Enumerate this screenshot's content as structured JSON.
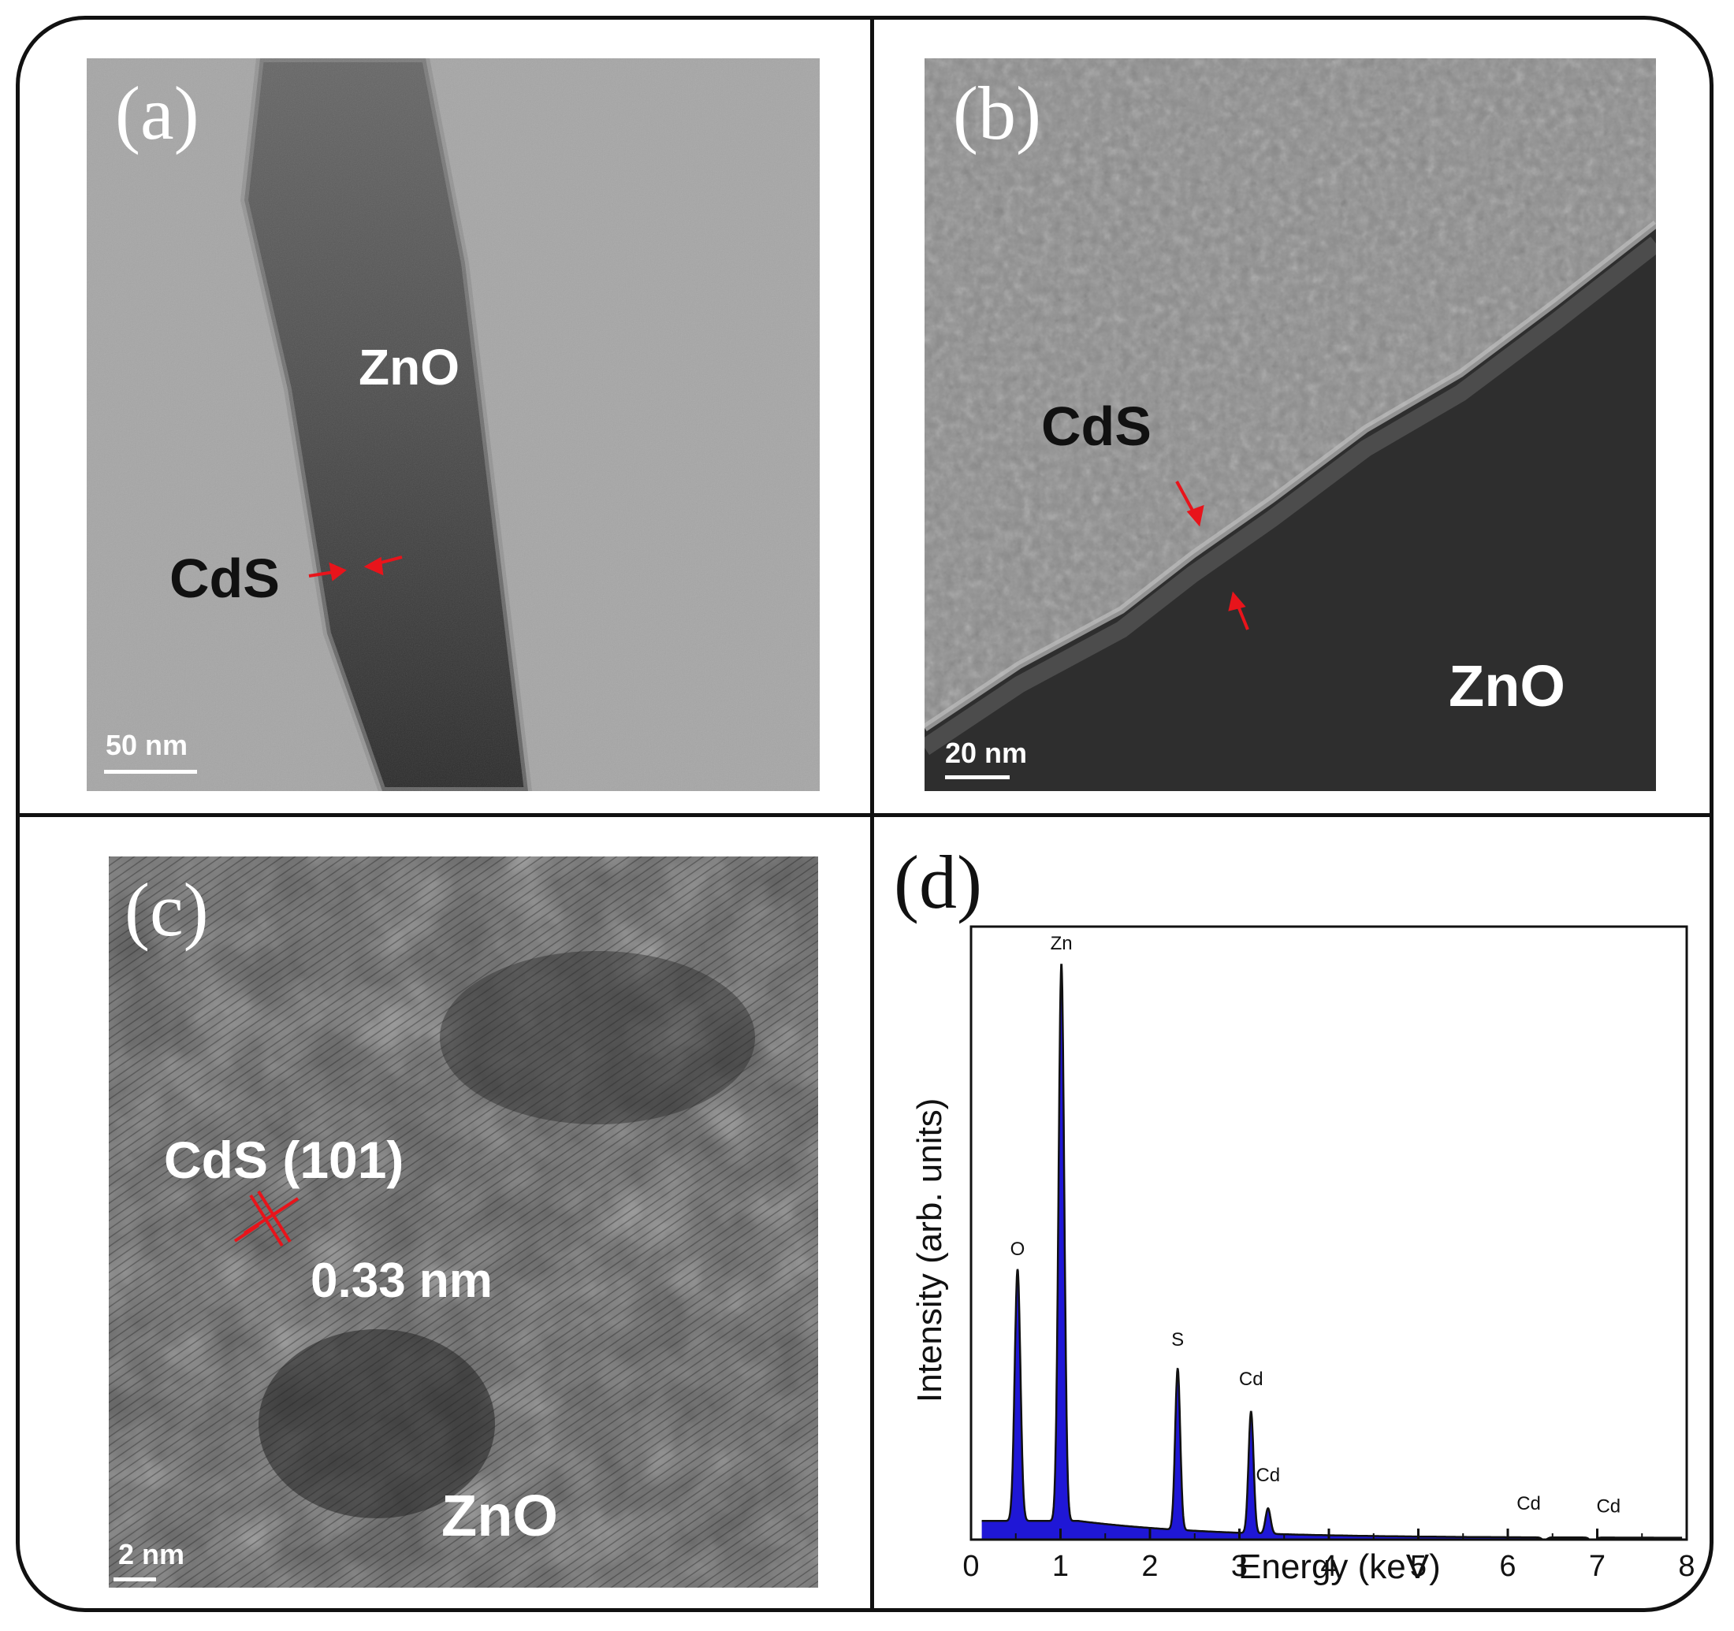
{
  "figure": {
    "panel_a": {
      "letter": "(a)",
      "labels": {
        "zno": "ZnO",
        "cds": "CdS"
      },
      "scale_bar": "50 nm"
    },
    "panel_b": {
      "letter": "(b)",
      "labels": {
        "cds": "CdS",
        "zno": "ZnO"
      },
      "scale_bar": "20 nm"
    },
    "panel_c": {
      "letter": "(c)",
      "labels": {
        "plane": "CdS (101)",
        "spacing": "0.33 nm",
        "zno": "ZnO"
      },
      "scale_bar": "2 nm"
    },
    "panel_d": {
      "letter": "(d)"
    },
    "colors": {
      "arrow": "#e8141b",
      "fill": "#1f17d6",
      "line": "#111111"
    }
  },
  "chart_data": {
    "type": "line",
    "title": "",
    "xlabel": "Energy (keV)",
    "ylabel": "Intensity (arb. units)",
    "xlim": [
      0,
      8
    ],
    "ylim": [
      0,
      100
    ],
    "x_ticks": [
      0,
      1,
      2,
      3,
      4,
      5,
      6,
      7,
      8
    ],
    "y_ticks_shown": false,
    "baseline": 3,
    "peaks": [
      {
        "label": "O",
        "energy": 0.52,
        "intensity": 46
      },
      {
        "label": "Zn",
        "energy": 1.01,
        "intensity": 100
      },
      {
        "label": "S",
        "energy": 2.31,
        "intensity": 30
      },
      {
        "label": "Cd",
        "energy": 3.13,
        "intensity": 23
      },
      {
        "label": "Cd",
        "energy": 3.32,
        "intensity": 6
      },
      {
        "label": "Cd",
        "energy": 6.41,
        "intensity": 1
      },
      {
        "label": "Cd",
        "energy": 6.95,
        "intensity": 0.5
      }
    ]
  }
}
